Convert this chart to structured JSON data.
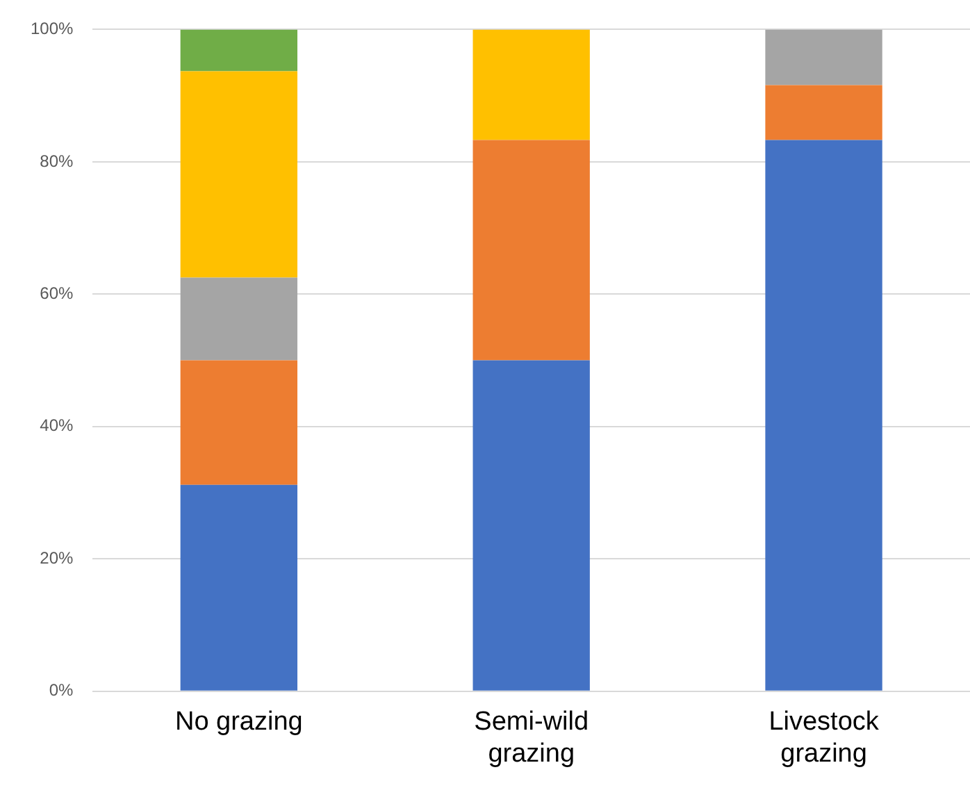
{
  "chart_data": {
    "type": "bar",
    "stacked": true,
    "categories": [
      "No grazing",
      "Semi-wild\ngrazing",
      "Livestock\ngrazing"
    ],
    "series": [
      {
        "color": "#4472c4",
        "values": [
          31.2,
          50,
          83.3
        ]
      },
      {
        "color": "#ed7d31",
        "values": [
          18.8,
          33.3,
          8.3
        ]
      },
      {
        "color": "#a5a5a5",
        "values": [
          12.5,
          0,
          8.4
        ]
      },
      {
        "color": "#ffc000",
        "values": [
          31.2,
          16.7,
          0
        ]
      },
      {
        "color": "#70ad47",
        "values": [
          6.3,
          0,
          0
        ]
      }
    ],
    "ylim": [
      0,
      100
    ],
    "yticks": [
      {
        "value": 0,
        "label": "0%"
      },
      {
        "value": 20,
        "label": "20%"
      },
      {
        "value": 40,
        "label": "40%"
      },
      {
        "value": 60,
        "label": "60%"
      },
      {
        "value": 80,
        "label": "80%"
      },
      {
        "value": 100,
        "label": "100%"
      }
    ],
    "grid": "y",
    "legend": false
  }
}
